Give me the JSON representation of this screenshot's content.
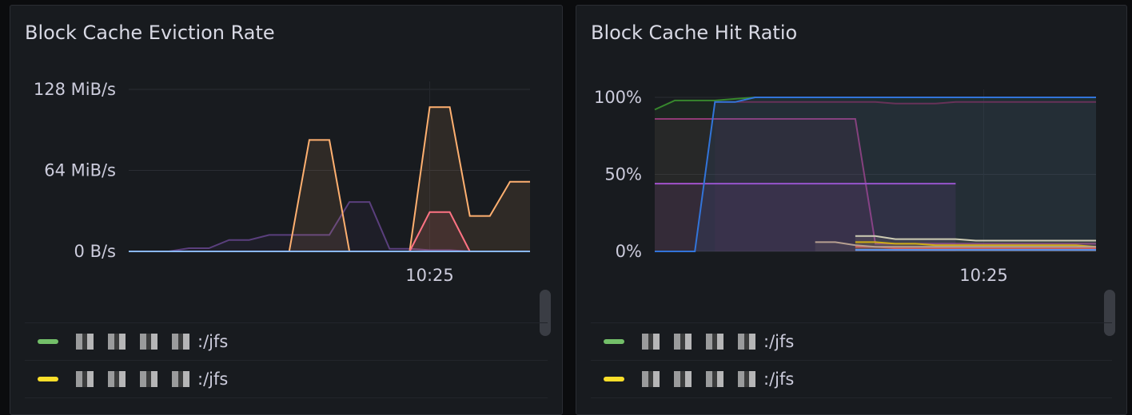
{
  "chart_data": [
    {
      "type": "area",
      "title": "Block Cache Eviction Rate",
      "yunit": "MiB/s",
      "ylim": [
        0,
        128
      ],
      "yticks": [
        "0 B/s",
        "64 MiB/s",
        "128 MiB/s"
      ],
      "ytick_values": [
        0,
        64,
        128
      ],
      "xlim": [
        "10:17:30",
        "10:27:30"
      ],
      "xticks": [
        "10:25"
      ],
      "grid": true,
      "times": [
        "10:17:30",
        "10:18:00",
        "10:18:30",
        "10:19:00",
        "10:19:30",
        "10:20:00",
        "10:20:30",
        "10:21:00",
        "10:21:30",
        "10:22:00",
        "10:22:30",
        "10:23:00",
        "10:23:30",
        "10:24:00",
        "10:24:30",
        "10:25:00",
        "10:25:30",
        "10:26:00",
        "10:26:30",
        "10:27:00",
        "10:27:30"
      ],
      "series": [
        {
          "color": "#5a3f7d",
          "values": [
            0,
            0,
            0,
            2.5,
            2.5,
            9,
            9,
            13,
            13,
            13,
            13,
            39,
            39,
            2,
            2,
            1,
            1,
            0,
            0,
            0,
            0
          ]
        },
        {
          "color": "#ffb070",
          "values": [
            null,
            null,
            null,
            null,
            null,
            null,
            null,
            null,
            0,
            88,
            88,
            0,
            null,
            null,
            0,
            114,
            114,
            28,
            28,
            55,
            55
          ]
        },
        {
          "color": "#ff7383",
          "values": [
            null,
            null,
            null,
            null,
            null,
            null,
            null,
            null,
            null,
            null,
            null,
            null,
            null,
            null,
            0,
            31,
            31,
            0,
            null,
            null,
            null
          ]
        },
        {
          "color": "#8ab8ff",
          "values": [
            0,
            0,
            0,
            0,
            0,
            0,
            0,
            0,
            0,
            0,
            0,
            0,
            0,
            0,
            0,
            0,
            0,
            0,
            0,
            0,
            0
          ]
        }
      ]
    },
    {
      "type": "area",
      "title": "Block Cache Hit Ratio",
      "yunit": "%",
      "ylim": [
        0,
        100
      ],
      "yticks": [
        "0%",
        "50%",
        "100%"
      ],
      "ytick_values": [
        0,
        50,
        100
      ],
      "xlim": [
        "10:16:48",
        "10:27:48"
      ],
      "xticks": [
        "10:25"
      ],
      "grid": true,
      "times": [
        "10:16:48",
        "10:17:18",
        "10:17:48",
        "10:18:18",
        "10:18:48",
        "10:19:18",
        "10:19:48",
        "10:20:18",
        "10:20:48",
        "10:21:18",
        "10:21:48",
        "10:22:18",
        "10:22:48",
        "10:23:18",
        "10:23:48",
        "10:24:18",
        "10:24:48",
        "10:25:18",
        "10:25:48",
        "10:26:18",
        "10:26:48",
        "10:27:18",
        "10:27:48"
      ],
      "series": [
        {
          "color": "#37872d",
          "values": [
            92,
            98,
            98,
            98,
            99,
            100,
            100,
            100,
            100,
            100,
            100,
            100,
            100,
            100,
            100,
            100,
            100,
            100,
            100,
            100,
            100,
            100,
            100
          ]
        },
        {
          "color": "#6e2b4a",
          "values": [
            null,
            null,
            null,
            97,
            97,
            97,
            97,
            97,
            97,
            97,
            97,
            97,
            96,
            96,
            96,
            97,
            97,
            97,
            97,
            97,
            97,
            97,
            97
          ]
        },
        {
          "color": "#8f3b74",
          "values": [
            86,
            86,
            86,
            86,
            86,
            86,
            86,
            86,
            86,
            86,
            86,
            5,
            5,
            5,
            5,
            5,
            5,
            5,
            5,
            5,
            5,
            5,
            5
          ]
        },
        {
          "color": "#a352cc",
          "values": [
            44,
            44,
            44,
            44,
            44,
            44,
            44,
            44,
            44,
            44,
            44,
            44,
            44,
            44,
            44,
            44,
            null,
            null,
            null,
            null,
            null,
            null,
            null
          ]
        },
        {
          "color": "#e0d6b0",
          "values": [
            null,
            null,
            null,
            null,
            null,
            null,
            null,
            null,
            null,
            null,
            10,
            10,
            8,
            8,
            8,
            8,
            7,
            7,
            7,
            7,
            7,
            7,
            7
          ]
        },
        {
          "color": "#e0b400",
          "values": [
            null,
            null,
            null,
            null,
            null,
            null,
            null,
            null,
            null,
            null,
            6,
            6,
            5,
            5,
            4,
            4,
            4,
            4,
            4,
            4,
            4,
            4,
            3
          ]
        },
        {
          "color": "#e24d42",
          "values": [
            null,
            null,
            null,
            null,
            null,
            null,
            null,
            null,
            null,
            null,
            3,
            3,
            2,
            2,
            2,
            2,
            2,
            2,
            2,
            2,
            2,
            2,
            2
          ]
        },
        {
          "color": "#c7a58a",
          "values": [
            null,
            null,
            null,
            null,
            null,
            null,
            null,
            null,
            6,
            6,
            4,
            3,
            3,
            3,
            3,
            3,
            3,
            3,
            3,
            3,
            3,
            3,
            3
          ]
        },
        {
          "color": "#3274d9",
          "values": [
            0,
            0,
            0,
            97,
            97,
            100,
            100,
            100,
            100,
            100,
            100,
            100,
            100,
            100,
            100,
            100,
            100,
            100,
            100,
            100,
            100,
            100,
            100
          ]
        },
        {
          "color": "#5794f2",
          "values": [
            null,
            null,
            null,
            null,
            null,
            null,
            null,
            null,
            null,
            null,
            1,
            1,
            1,
            1,
            1,
            1,
            1,
            1,
            1,
            1,
            1,
            1,
            1
          ]
        }
      ]
    }
  ],
  "panels": [
    {
      "title": "Block Cache Eviction Rate",
      "legend": [
        {
          "label": ":/jfs",
          "color": "#73bf69"
        },
        {
          "label": ":/jfs",
          "color": "#fade2a"
        }
      ]
    },
    {
      "title": "Block Cache Hit Ratio",
      "legend": [
        {
          "label": ":/jfs",
          "color": "#73bf69"
        },
        {
          "label": ":/jfs",
          "color": "#fade2a"
        }
      ]
    }
  ]
}
